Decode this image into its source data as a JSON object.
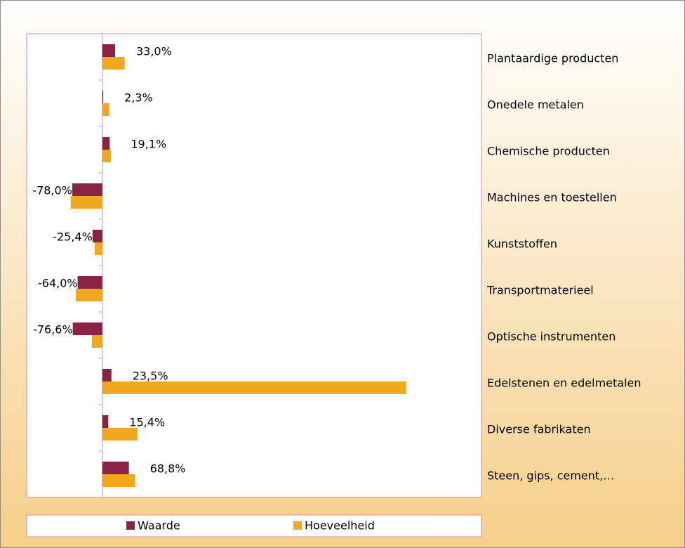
{
  "chart_data": {
    "type": "hbar",
    "categories": [
      "Plantaardige producten",
      "Onedele metalen",
      "Chemische producten",
      "Machines en toestellen",
      "Kunststoffen",
      "Transportmaterieel",
      "Optische instrumenten",
      "Edelstenen en edelmetalen",
      "Diverse fabrikaten",
      "Steen, gips, cement,…"
    ],
    "series": [
      {
        "name": "Waarde",
        "color": "#8b2346",
        "values": [
          33.0,
          2.3,
          19.1,
          -78.0,
          -25.4,
          -64.0,
          -76.6,
          23.5,
          15.4,
          68.8
        ],
        "value_labels": [
          "33,0%",
          "2,3%",
          "19,1%",
          "-78,0%",
          "-25,4%",
          "-64,0%",
          "-76,6%",
          "23,5%",
          "15,4%",
          "68,8%"
        ]
      },
      {
        "name": "Hoeveelheid",
        "color": "#f0a820",
        "values": [
          58,
          18,
          22,
          -82,
          -20,
          -69,
          -27,
          787,
          91,
          85
        ]
      }
    ],
    "xlim": [
      -196,
      982
    ]
  }
}
